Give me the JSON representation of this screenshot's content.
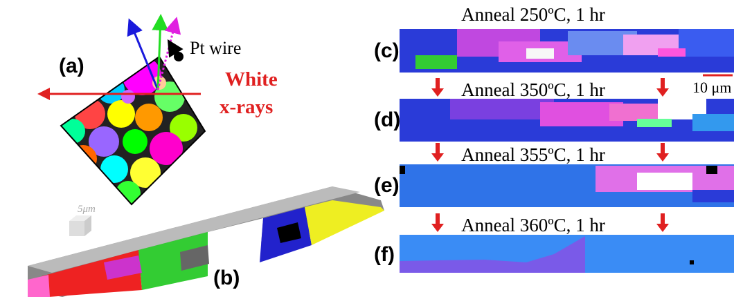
{
  "panel_a": {
    "label": "(a)",
    "pt_wire": "Pt wire",
    "beam_line1": "White",
    "beam_line2": "x-rays"
  },
  "panel_b": {
    "label": "(b)",
    "scale": "5μm"
  },
  "panels_right": [
    {
      "label": "(c)",
      "caption": "Anneal 250ºC,  1 hr"
    },
    {
      "label": "(d)",
      "caption": "Anneal 350ºC,  1 hr"
    },
    {
      "label": "(e)",
      "caption": "Anneal 355ºC,  1 hr"
    },
    {
      "label": "(f)",
      "caption": "Anneal 360ºC,  1 hr"
    }
  ],
  "scale_bar": "10 μm"
}
